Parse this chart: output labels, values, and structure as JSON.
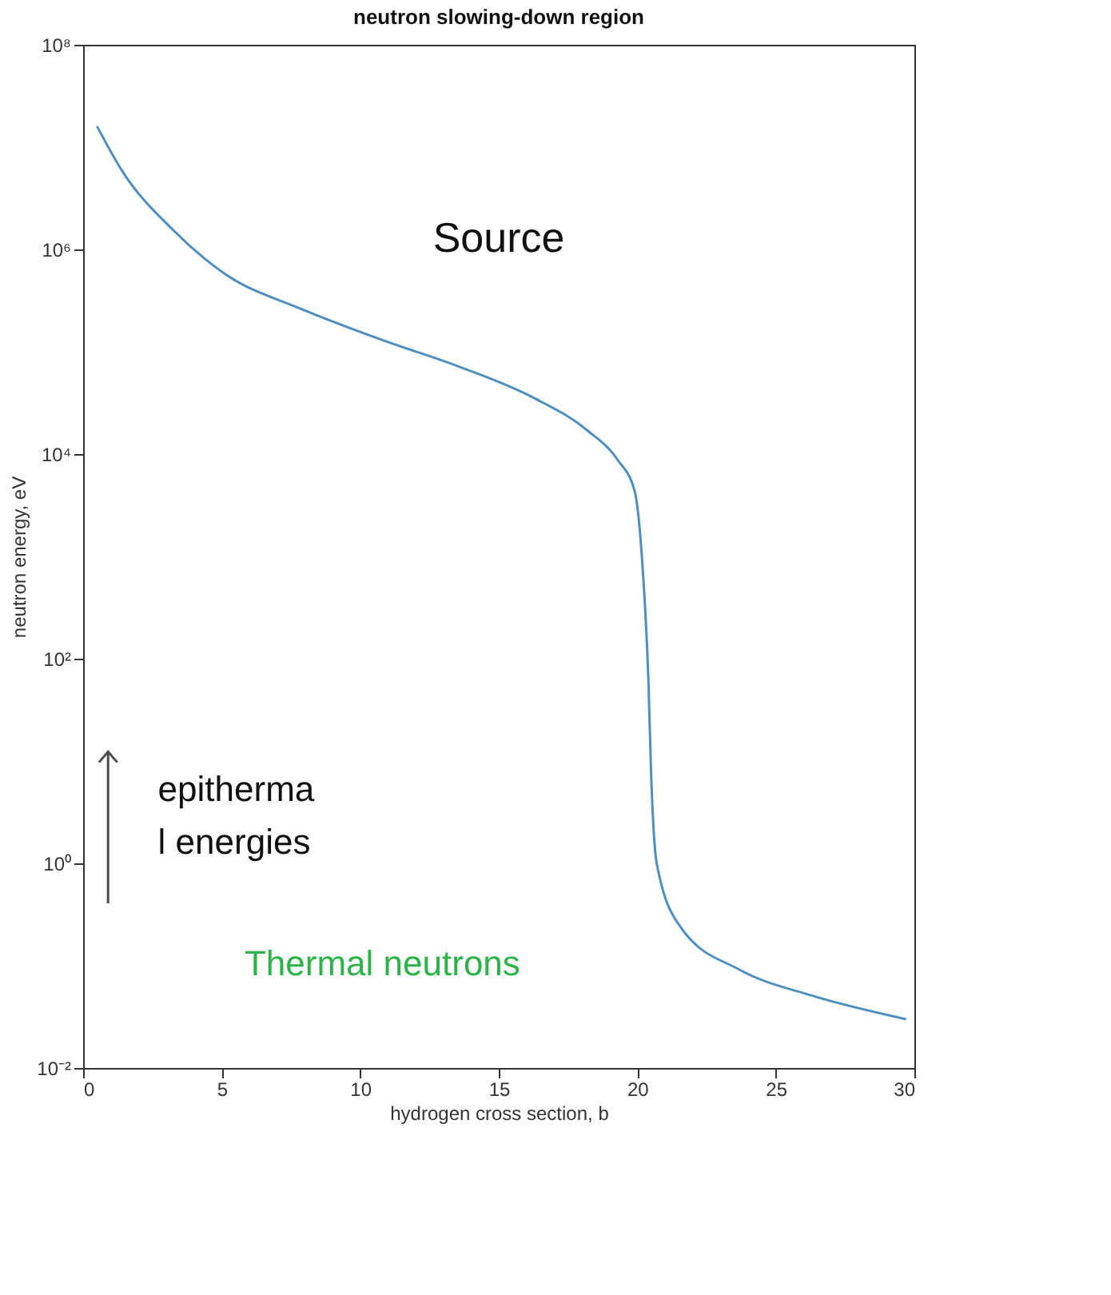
{
  "chart_data": {
    "type": "line",
    "title": "neutron slowing-down region",
    "xlabel": "hydrogen cross section, b",
    "ylabel": "neutron energy, eV",
    "x": [
      0.5,
      1.4,
      3.3,
      5.1,
      7.9,
      10.8,
      13.6,
      16.3,
      18.2,
      19.3,
      19.9,
      20.2,
      20.4,
      20.5,
      20.7,
      21.6,
      23.7,
      26.3,
      29.7
    ],
    "series": [
      {
        "color": "#4f8fbf",
        "values": [
          16000000,
          5900000,
          1500000,
          580000,
          260000,
          130000,
          71000,
          35000,
          17000,
          8700,
          4400,
          720,
          63,
          7.4,
          1.0,
          0.23,
          0.091,
          0.051,
          0.03
        ]
      }
    ],
    "log": "y",
    "xlim": [
      0,
      30
    ],
    "xticks": [
      0,
      5,
      10,
      15,
      20,
      25,
      30
    ],
    "ylim": [
      0.01,
      100000000
    ],
    "yticks": [
      {
        "value": 0.01,
        "label": "10⁻²"
      },
      {
        "value": 1,
        "label": "10⁰"
      },
      {
        "value": 100,
        "label": "10²"
      },
      {
        "value": 10000,
        "label": "10⁴"
      },
      {
        "value": 1000000,
        "label": "10⁶"
      },
      {
        "value": 100000000,
        "label": "10⁸"
      }
    ],
    "grid": false,
    "marker": "none",
    "line_style": "solid",
    "annotations": [
      "Source",
      "epitherma\nl energies",
      "Thermal neutrons"
    ]
  }
}
